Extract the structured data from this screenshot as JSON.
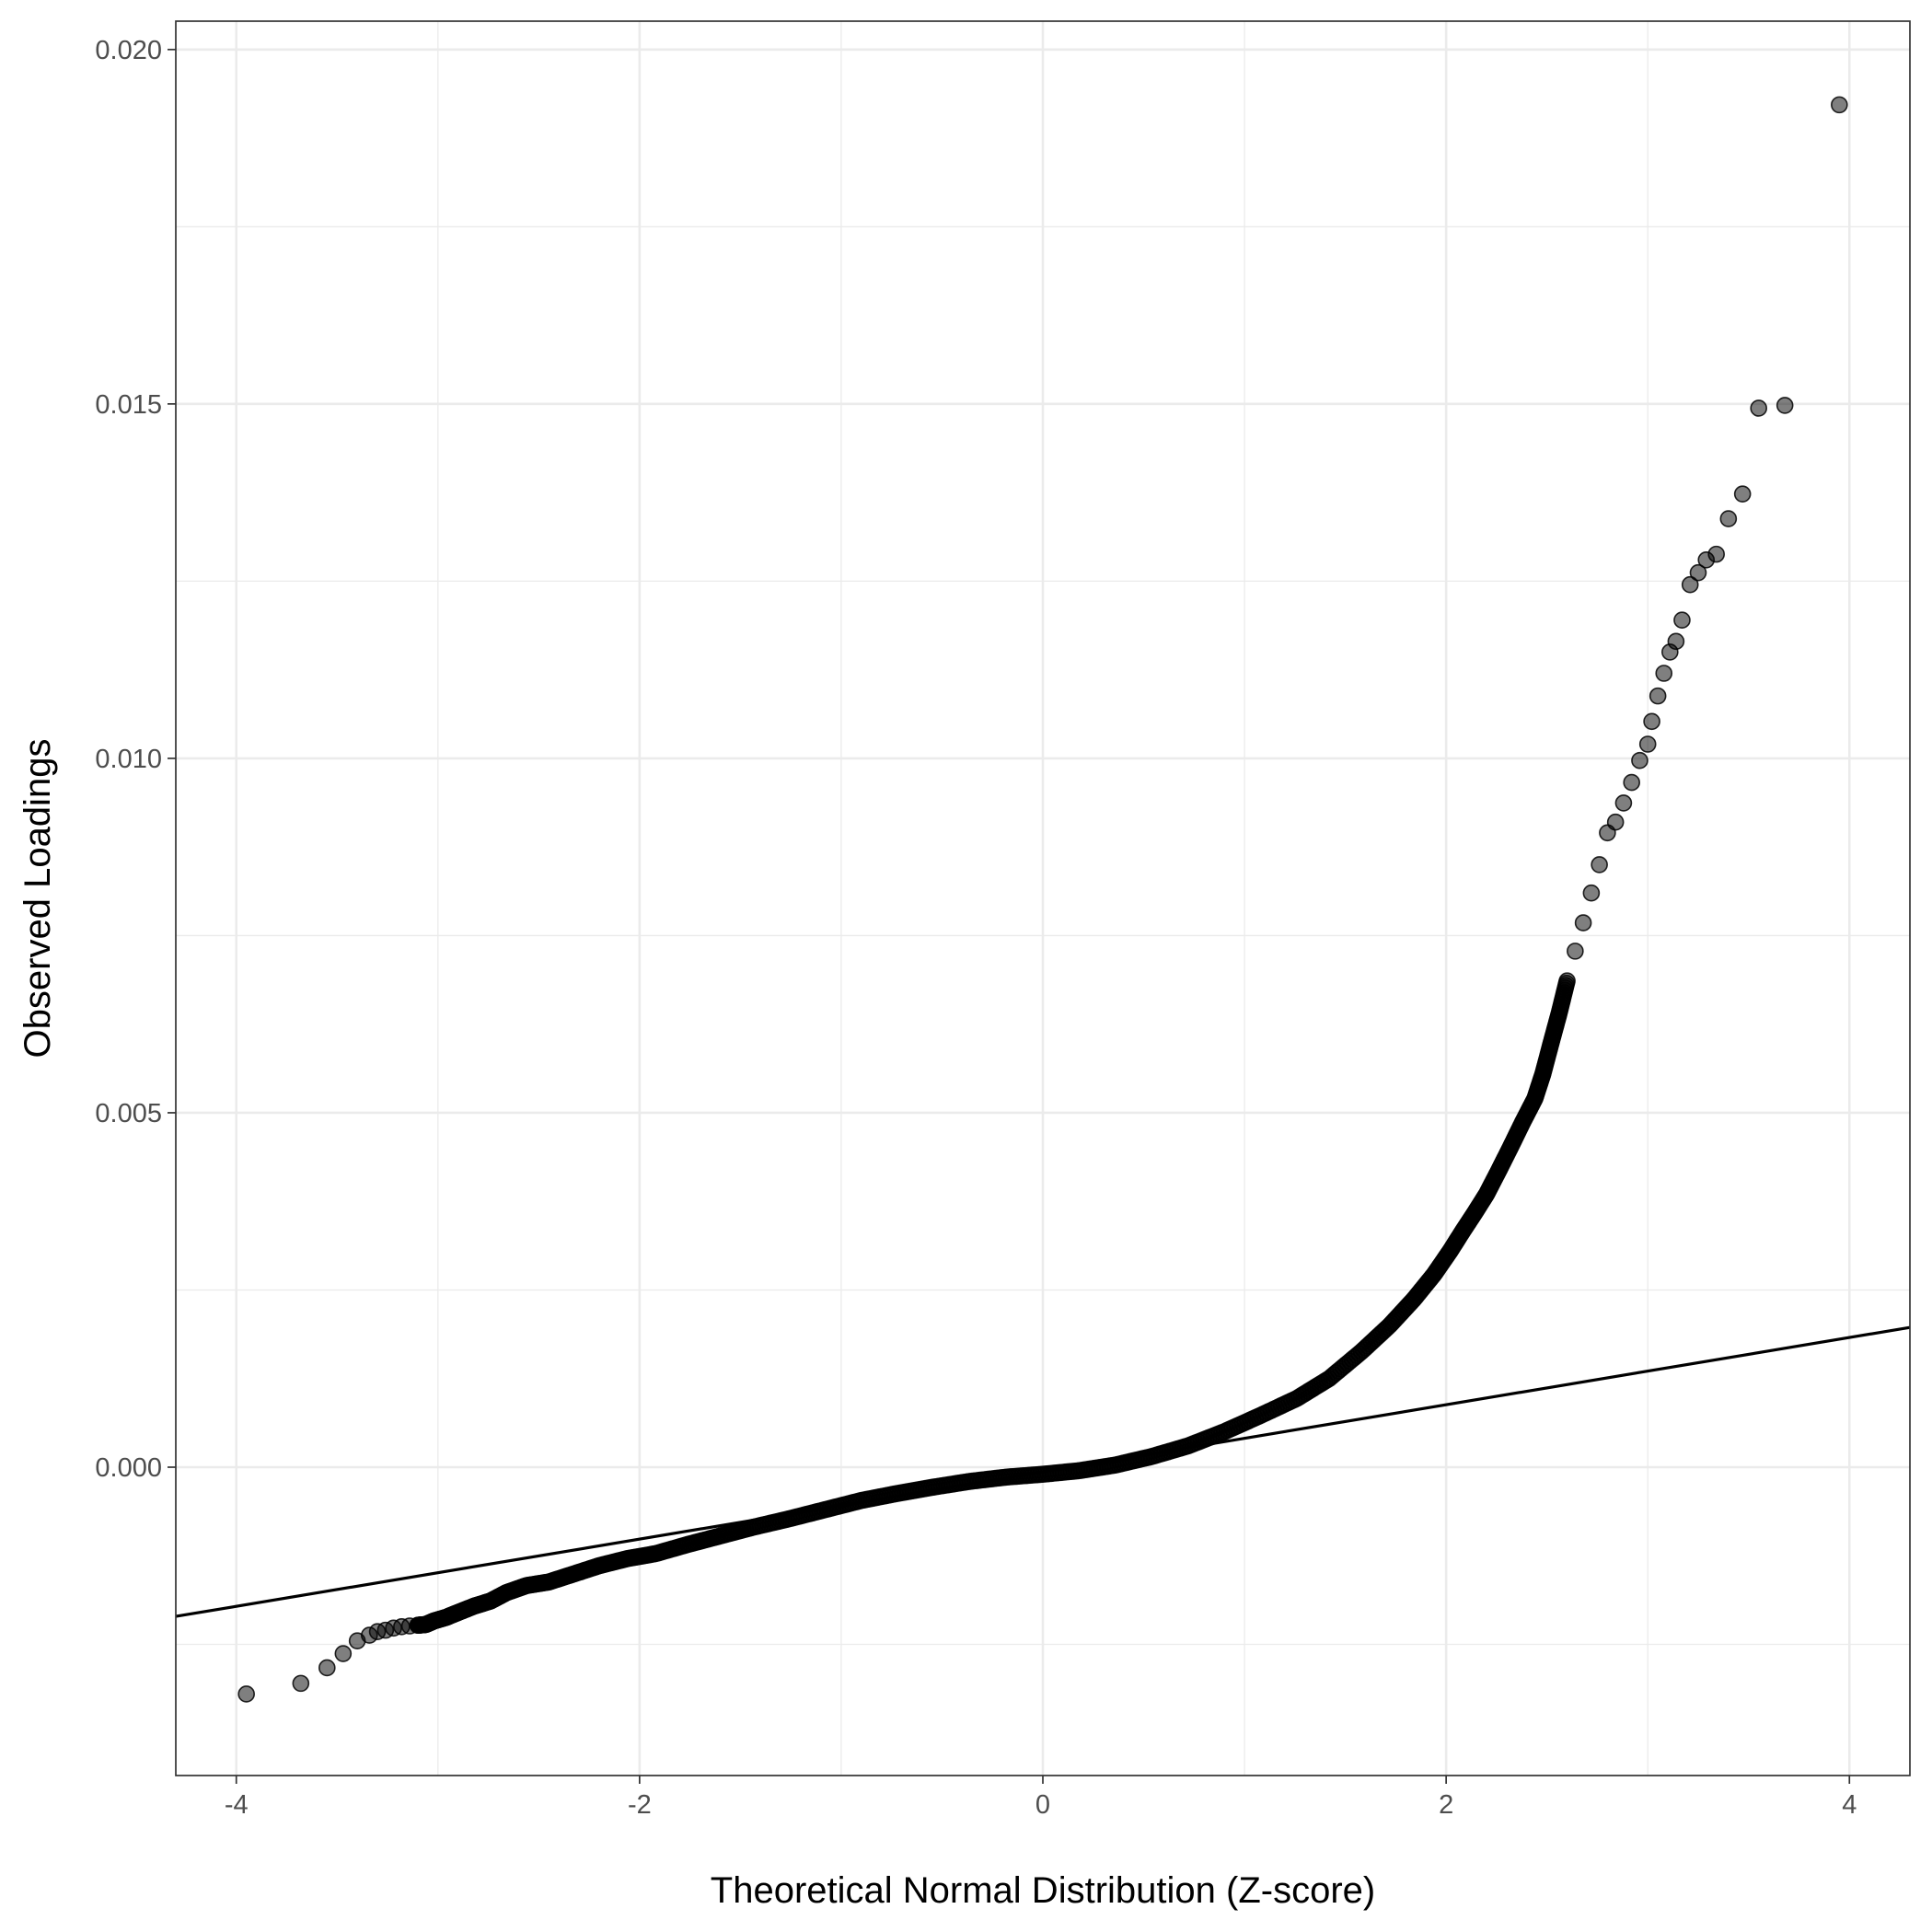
{
  "chart_data": {
    "type": "scatter",
    "title": "",
    "xlabel": "Theoretical Normal Distribution (Z-score)",
    "ylabel": "Observed Loadings",
    "xlim": [
      -4.3,
      4.3
    ],
    "ylim": [
      -0.00435,
      0.0204
    ],
    "x_ticks": [
      -4,
      -2,
      0,
      2,
      4
    ],
    "x_tick_labels": [
      "-4",
      "-2",
      "0",
      "2",
      "4"
    ],
    "y_ticks": [
      0.0,
      0.005,
      0.01,
      0.015,
      0.02
    ],
    "y_tick_labels": [
      "0.000",
      "0.005",
      "0.010",
      "0.015",
      "0.020"
    ],
    "grid": true,
    "legend": "none",
    "colors": {
      "points": "#000000",
      "point_opacity": 0.5,
      "grid": "#ebebeb",
      "line": "#000000"
    },
    "reference_line": {
      "slope": 0.000474,
      "intercept": -6.67e-05
    },
    "series": [
      {
        "values_x": [
          -3.95,
          -3.68,
          -3.55,
          -3.47,
          -3.4,
          -3.34,
          -3.3,
          -3.26,
          -3.22,
          -3.18,
          -3.14,
          -3.1,
          -3.06,
          -3.02,
          -2.96,
          -2.9,
          -2.82,
          -2.74,
          -2.66,
          -2.56,
          -2.45,
          -2.33,
          -2.2,
          -2.06,
          -1.92,
          -1.76,
          -1.6,
          -1.44,
          -1.26,
          -1.08,
          -0.9,
          -0.72,
          -0.54,
          -0.36,
          -0.18,
          0.0,
          0.18,
          0.36,
          0.54,
          0.72,
          0.9,
          1.08,
          1.26,
          1.42,
          1.58,
          1.72,
          1.84,
          1.94,
          2.02,
          2.08,
          2.14,
          2.2,
          2.26,
          2.32,
          2.38,
          2.44,
          2.48,
          2.52,
          2.56,
          2.6,
          2.64,
          2.68,
          2.72,
          2.76,
          2.8,
          2.84,
          2.88,
          2.92,
          2.96,
          3.0,
          3.02,
          3.05,
          3.08,
          3.11,
          3.14,
          3.17,
          3.21,
          3.25,
          3.29,
          3.34,
          3.4,
          3.47,
          3.55,
          3.68,
          3.95
        ],
        "values_y": [
          -0.0032,
          -0.00305,
          -0.00283,
          -0.00263,
          -0.00245,
          -0.00237,
          -0.00232,
          -0.0023,
          -0.00227,
          -0.00225,
          -0.00224,
          -0.00223,
          -0.00222,
          -0.00217,
          -0.00212,
          -0.00205,
          -0.00196,
          -0.00189,
          -0.00177,
          -0.00167,
          -0.00162,
          -0.00151,
          -0.00139,
          -0.00129,
          -0.00122,
          -0.00109,
          -0.00097,
          -0.00085,
          -0.00073,
          -0.0006,
          -0.00047,
          -0.00037,
          -0.00028,
          -0.0002,
          -0.00014,
          -0.0001,
          -5e-05,
          3e-05,
          0.00015,
          0.0003,
          0.0005,
          0.00073,
          0.00097,
          0.00125,
          0.00163,
          0.002,
          0.00237,
          0.00272,
          0.00305,
          0.00332,
          0.00358,
          0.00385,
          0.00418,
          0.00452,
          0.00487,
          0.0052,
          0.00555,
          0.00598,
          0.0064,
          0.00686,
          0.00728,
          0.00768,
          0.0081,
          0.0085,
          0.00895,
          0.0091,
          0.00937,
          0.00966,
          0.00997,
          0.0102,
          0.01052,
          0.01088,
          0.0112,
          0.0115,
          0.01165,
          0.01195,
          0.01245,
          0.01262,
          0.0128,
          0.01288,
          0.01338,
          0.01373,
          0.01494,
          0.01498,
          0.01922
        ]
      }
    ]
  }
}
